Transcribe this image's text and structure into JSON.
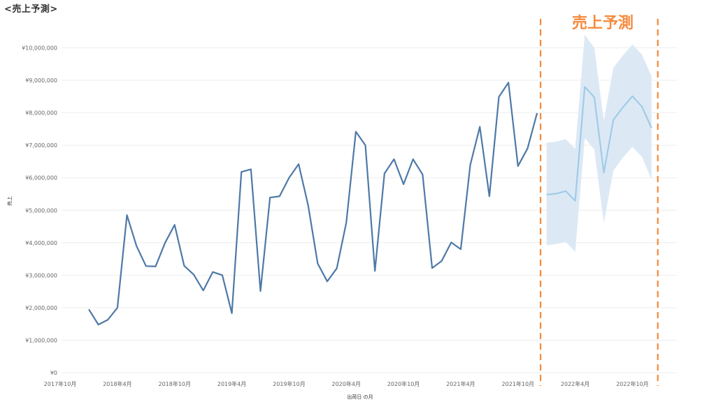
{
  "page_title": "<売上予測>",
  "colors": {
    "actual_line": "#4e79a7",
    "forecast_line": "#a0cbe8",
    "forecast_band": "#dce9f5",
    "divider": "#f58a3c",
    "grid": "#eeeeee"
  },
  "chart_data": {
    "type": "line",
    "title": "<売上予測>",
    "xlabel": "出荷日 の月",
    "ylabel": "売上",
    "ylim": [
      0,
      10000000
    ],
    "grid": true,
    "yticks": [
      {
        "v": 0,
        "label": "¥0"
      },
      {
        "v": 1000000,
        "label": "¥1,000,000"
      },
      {
        "v": 2000000,
        "label": "¥2,000,000"
      },
      {
        "v": 3000000,
        "label": "¥3,000,000"
      },
      {
        "v": 4000000,
        "label": "¥4,000,000"
      },
      {
        "v": 5000000,
        "label": "¥5,000,000"
      },
      {
        "v": 6000000,
        "label": "¥6,000,000"
      },
      {
        "v": 7000000,
        "label": "¥7,000,000"
      },
      {
        "v": 8000000,
        "label": "¥8,000,000"
      },
      {
        "v": 9000000,
        "label": "¥9,000,000"
      },
      {
        "v": 10000000,
        "label": "¥10,000,000"
      }
    ],
    "xticks": [
      {
        "m": "2017-10",
        "label": "2017年10月"
      },
      {
        "m": "2018-04",
        "label": "2018年4月"
      },
      {
        "m": "2018-10",
        "label": "2018年10月"
      },
      {
        "m": "2019-04",
        "label": "2019年4月"
      },
      {
        "m": "2019-10",
        "label": "2019年10月"
      },
      {
        "m": "2020-04",
        "label": "2020年4月"
      },
      {
        "m": "2020-10",
        "label": "2020年10月"
      },
      {
        "m": "2021-04",
        "label": "2021年4月"
      },
      {
        "m": "2021-10",
        "label": "2021年10月"
      },
      {
        "m": "2022-04",
        "label": "2022年4月"
      },
      {
        "m": "2022-10",
        "label": "2022年10月"
      }
    ],
    "forecast_label": "売上予測",
    "forecast_region": [
      "2021-12",
      "2022-12"
    ],
    "series": [
      {
        "kind": "actual",
        "months": [
          "2018-01",
          "2018-02",
          "2018-03",
          "2018-04",
          "2018-05",
          "2018-06",
          "2018-07",
          "2018-08",
          "2018-09",
          "2018-10",
          "2018-11",
          "2018-12",
          "2019-01",
          "2019-02",
          "2019-03",
          "2019-04",
          "2019-05",
          "2019-06",
          "2019-07",
          "2019-08",
          "2019-09",
          "2019-10",
          "2019-11",
          "2019-12",
          "2020-01",
          "2020-02",
          "2020-03",
          "2020-04",
          "2020-05",
          "2020-06",
          "2020-07",
          "2020-08",
          "2020-09",
          "2020-10",
          "2020-11",
          "2020-12",
          "2021-01",
          "2021-02",
          "2021-03",
          "2021-04",
          "2021-05",
          "2021-06",
          "2021-07",
          "2021-08",
          "2021-09",
          "2021-10",
          "2021-11",
          "2021-12"
        ],
        "values": [
          1950000,
          1480000,
          1630000,
          2000000,
          4850000,
          3900000,
          3280000,
          3270000,
          4000000,
          4550000,
          3290000,
          3020000,
          2530000,
          3100000,
          3000000,
          1830000,
          6180000,
          6260000,
          2510000,
          5390000,
          5430000,
          6000000,
          6420000,
          5150000,
          3360000,
          2810000,
          3210000,
          4620000,
          7420000,
          7000000,
          3130000,
          6130000,
          6570000,
          5800000,
          6570000,
          6100000,
          3220000,
          3440000,
          4010000,
          3800000,
          6400000,
          7570000,
          5430000,
          8490000,
          8930000,
          6360000,
          6900000,
          7990000
        ]
      },
      {
        "kind": "forecast",
        "months": [
          "2022-01",
          "2022-02",
          "2022-03",
          "2022-04",
          "2022-05",
          "2022-06",
          "2022-07",
          "2022-08",
          "2022-09",
          "2022-10",
          "2022-11",
          "2022-12",
          "2023-01"
        ],
        "values": [
          5480000,
          5510000,
          5590000,
          5290000,
          8800000,
          8480000,
          6160000,
          7780000,
          8170000,
          8510000,
          8190000,
          7530000,
          null
        ],
        "upper": [
          7080000,
          7110000,
          7190000,
          6890000,
          10400000,
          10000000,
          7760000,
          9380000,
          9770000,
          10100000,
          9790000,
          9130000,
          null
        ],
        "lower": [
          3920000,
          3960000,
          4030000,
          3720000,
          7220000,
          6870000,
          4610000,
          6220000,
          6620000,
          6950000,
          6640000,
          5950000,
          null
        ]
      }
    ]
  }
}
